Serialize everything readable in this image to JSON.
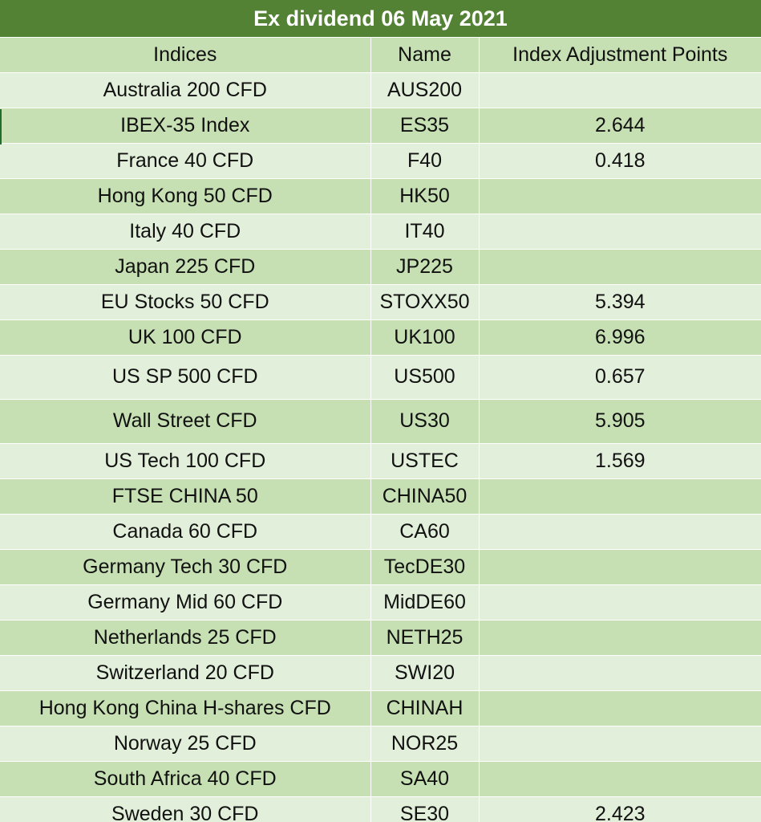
{
  "title": "Ex dividend 06 May 2021",
  "columns": [
    "Indices",
    "Name",
    "Index Adjustment Points"
  ],
  "rows": [
    {
      "index": "Australia 200 CFD",
      "name": "AUS200",
      "points": ""
    },
    {
      "index": "IBEX-35 Index",
      "name": "ES35",
      "points": "2.644"
    },
    {
      "index": "France 40 CFD",
      "name": "F40",
      "points": "0.418"
    },
    {
      "index": "Hong Kong 50 CFD",
      "name": "HK50",
      "points": ""
    },
    {
      "index": "Italy 40 CFD",
      "name": "IT40",
      "points": ""
    },
    {
      "index": "Japan 225 CFD",
      "name": "JP225",
      "points": ""
    },
    {
      "index": "EU Stocks 50 CFD",
      "name": "STOXX50",
      "points": "5.394"
    },
    {
      "index": "UK 100 CFD",
      "name": "UK100",
      "points": "6.996"
    },
    {
      "index": "US SP 500 CFD",
      "name": "US500",
      "points": "0.657"
    },
    {
      "index": "Wall Street CFD",
      "name": "US30",
      "points": "5.905"
    },
    {
      "index": "US Tech 100 CFD",
      "name": "USTEC",
      "points": "1.569"
    },
    {
      "index": "FTSE CHINA 50",
      "name": "CHINA50",
      "points": ""
    },
    {
      "index": "Canada 60 CFD",
      "name": "CA60",
      "points": ""
    },
    {
      "index": "Germany Tech 30 CFD",
      "name": "TecDE30",
      "points": ""
    },
    {
      "index": "Germany Mid 60 CFD",
      "name": "MidDE60",
      "points": ""
    },
    {
      "index": "Netherlands 25 CFD",
      "name": "NETH25",
      "points": ""
    },
    {
      "index": "Switzerland 20 CFD",
      "name": "SWI20",
      "points": ""
    },
    {
      "index": "Hong Kong China H-shares CFD",
      "name": "CHINAH",
      "points": ""
    },
    {
      "index": "Norway 25 CFD",
      "name": "NOR25",
      "points": ""
    },
    {
      "index": "South Africa 40 CFD",
      "name": "SA40",
      "points": ""
    },
    {
      "index": "Sweden 30 CFD",
      "name": "SE30",
      "points": "2.423"
    }
  ],
  "colors": {
    "title_bg": "#548235",
    "title_text": "#ffffff",
    "band_dark": "#c6e0b4",
    "band_light": "#e2efda"
  }
}
